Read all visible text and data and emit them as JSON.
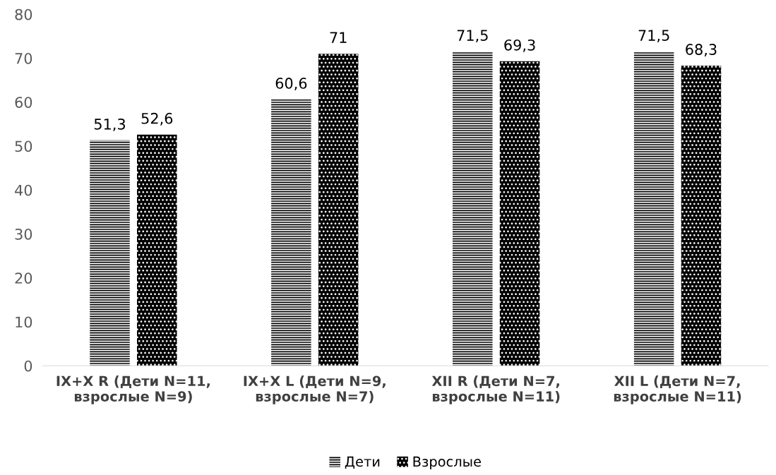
{
  "chart_data": {
    "type": "bar",
    "categories": [
      "IX+X R (Дети N=11,\nвзрослые N=9)",
      "IX+X L (Дети N=9,\nвзрослые N=7)",
      "XII R (Дети N=7,\nвзрослые N=11)",
      "XII L (Дети N=7,\nвзрослые N=11)"
    ],
    "series": [
      {
        "name": "Дети",
        "color": "#ffffff",
        "values": [
          51.3,
          60.6,
          71.5,
          71.5
        ],
        "value_labels": [
          "51,3",
          "60,6",
          "71,5",
          "71,5"
        ]
      },
      {
        "name": "Взрослые",
        "color": "#000000",
        "values": [
          52.6,
          71,
          69.3,
          68.3
        ],
        "value_labels": [
          "52,6",
          "71",
          "69,3",
          "68,3"
        ]
      }
    ],
    "ylim": [
      0,
      80
    ],
    "yticks": [
      0,
      10,
      20,
      30,
      40,
      50,
      60,
      70,
      80
    ],
    "grid": false,
    "legend": "bottom"
  }
}
